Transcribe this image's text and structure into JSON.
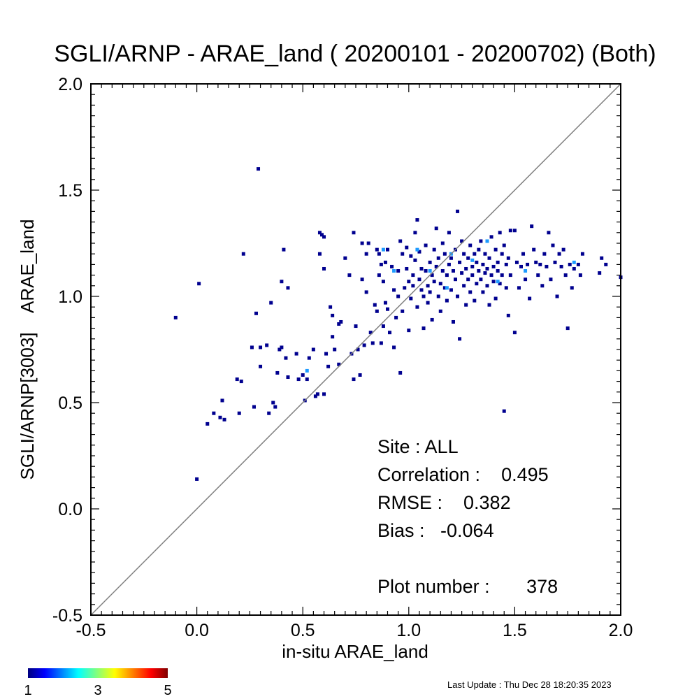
{
  "chart_data": {
    "type": "scatter",
    "title": "SGLI/ARNP - ARAE_land ( 20200101 - 20200702) (Both)",
    "xlabel": "in-situ ARAE_land",
    "ylabel": "SGLI/ARNP[3003]    ARAE_land",
    "xlim": [
      -0.5,
      2.0
    ],
    "ylim": [
      -0.5,
      2.0
    ],
    "x_ticks": [
      "-0.5",
      "0.0",
      "0.5",
      "1.0",
      "1.5",
      "2.0"
    ],
    "y_ticks": [
      "-0.5",
      "0.0",
      "0.5",
      "1.0",
      "1.5",
      "2.0"
    ],
    "one_to_one_line": true,
    "grid": false,
    "colorbar": {
      "min": 1,
      "max": 5,
      "labels": [
        "1",
        "3",
        "5"
      ],
      "colormap": "jet"
    },
    "stats": {
      "site": "Site : ALL",
      "correlation": "Correlation :    0.495",
      "rmse": "RMSE :    0.382",
      "bias": "Bias :   -0.064",
      "plot_number": "Plot number :       378"
    },
    "points": [
      [
        -0.1,
        0.9
      ],
      [
        0.0,
        0.14
      ],
      [
        0.01,
        1.06
      ],
      [
        0.05,
        0.4
      ],
      [
        0.08,
        0.45
      ],
      [
        0.11,
        0.43
      ],
      [
        0.12,
        0.51
      ],
      [
        0.13,
        0.42
      ],
      [
        0.19,
        0.61
      ],
      [
        0.2,
        0.45
      ],
      [
        0.21,
        0.6
      ],
      [
        0.22,
        1.2
      ],
      [
        0.26,
        0.76
      ],
      [
        0.27,
        0.48
      ],
      [
        0.28,
        0.92
      ],
      [
        0.29,
        1.6
      ],
      [
        0.3,
        0.76
      ],
      [
        0.3,
        0.67
      ],
      [
        0.33,
        0.77
      ],
      [
        0.34,
        0.45
      ],
      [
        0.35,
        0.97
      ],
      [
        0.36,
        0.5
      ],
      [
        0.37,
        0.48
      ],
      [
        0.38,
        0.64
      ],
      [
        0.39,
        0.75
      ],
      [
        0.4,
        0.76
      ],
      [
        0.4,
        1.07
      ],
      [
        0.41,
        1.22
      ],
      [
        0.42,
        0.71
      ],
      [
        0.43,
        1.04
      ],
      [
        0.43,
        0.62
      ],
      [
        0.47,
        0.73
      ],
      [
        0.48,
        0.61
      ],
      [
        0.5,
        0.63
      ],
      [
        0.51,
        0.51
      ],
      [
        0.52,
        0.61
      ],
      [
        0.53,
        0.71
      ],
      [
        0.55,
        0.75
      ],
      [
        0.56,
        0.53
      ],
      [
        0.57,
        0.54
      ],
      [
        0.58,
        1.3
      ],
      [
        0.58,
        1.2
      ],
      [
        0.59,
        1.29
      ],
      [
        0.6,
        1.28
      ],
      [
        0.6,
        0.54
      ],
      [
        0.6,
        1.13
      ],
      [
        0.61,
        0.73
      ],
      [
        0.62,
        0.67
      ],
      [
        0.63,
        0.95
      ],
      [
        0.64,
        0.81
      ],
      [
        0.64,
        0.91
      ],
      [
        0.65,
        0.75
      ],
      [
        0.67,
        0.87
      ],
      [
        0.67,
        0.68
      ],
      [
        0.68,
        0.88
      ],
      [
        0.7,
        1.18
      ],
      [
        0.72,
        1.1
      ],
      [
        0.73,
        0.73
      ],
      [
        0.74,
        0.61
      ],
      [
        0.74,
        1.3
      ],
      [
        0.75,
        0.86
      ],
      [
        0.76,
        0.75
      ],
      [
        0.77,
        0.63
      ],
      [
        0.78,
        1.08
      ],
      [
        0.78,
        1.25
      ],
      [
        0.79,
        0.77
      ],
      [
        0.8,
        1.2
      ],
      [
        0.8,
        1.02
      ],
      [
        0.81,
        1.25
      ],
      [
        0.82,
        0.83
      ],
      [
        0.83,
        0.78
      ],
      [
        0.84,
        0.96
      ],
      [
        0.85,
        1.22
      ],
      [
        0.85,
        0.93
      ],
      [
        0.86,
        1.1
      ],
      [
        0.86,
        1.2
      ],
      [
        0.87,
        0.78
      ],
      [
        0.87,
        1.15
      ],
      [
        0.88,
        1.07
      ],
      [
        0.88,
        0.86
      ],
      [
        0.89,
        1.16
      ],
      [
        0.89,
        0.97
      ],
      [
        0.9,
        1.22
      ],
      [
        0.9,
        0.94
      ],
      [
        0.91,
        0.83
      ],
      [
        0.92,
        1.14
      ],
      [
        0.93,
        1.03
      ],
      [
        0.93,
        0.76
      ],
      [
        0.94,
        0.9
      ],
      [
        0.95,
        1.12
      ],
      [
        0.95,
        1.0
      ],
      [
        0.96,
        1.26
      ],
      [
        0.96,
        0.64
      ],
      [
        0.97,
        1.2
      ],
      [
        0.97,
        0.93
      ],
      [
        0.98,
        1.04
      ],
      [
        0.99,
        1.13
      ],
      [
        0.99,
        1.23
      ],
      [
        1.0,
        1.07
      ],
      [
        1.0,
        0.84
      ],
      [
        1.01,
        1.19
      ],
      [
        1.01,
        0.99
      ],
      [
        1.02,
        1.1
      ],
      [
        1.02,
        1.05
      ],
      [
        1.03,
        1.17
      ],
      [
        1.03,
        1.3
      ],
      [
        1.04,
        1.36
      ],
      [
        1.04,
        0.95
      ],
      [
        1.05,
        1.08
      ],
      [
        1.05,
        1.21
      ],
      [
        1.06,
        1.03
      ],
      [
        1.06,
        1.13
      ],
      [
        1.07,
        1.0
      ],
      [
        1.07,
        0.85
      ],
      [
        1.08,
        1.12
      ],
      [
        1.08,
        1.24
      ],
      [
        1.09,
        1.05
      ],
      [
        1.09,
        0.97
      ],
      [
        1.1,
        1.16
      ],
      [
        1.1,
        1.02
      ],
      [
        1.11,
        1.1
      ],
      [
        1.11,
        0.89
      ],
      [
        1.12,
        1.22
      ],
      [
        1.12,
        1.07
      ],
      [
        1.13,
        1.14
      ],
      [
        1.13,
        1.32
      ],
      [
        1.14,
        1.0
      ],
      [
        1.14,
        1.18
      ],
      [
        1.15,
        1.06
      ],
      [
        1.15,
        0.93
      ],
      [
        1.16,
        1.12
      ],
      [
        1.16,
        1.25
      ],
      [
        1.17,
        1.04
      ],
      [
        1.17,
        1.2
      ],
      [
        1.18,
        1.1
      ],
      [
        1.18,
        0.98
      ],
      [
        1.19,
        1.15
      ],
      [
        1.19,
        1.3
      ],
      [
        1.2,
        1.03
      ],
      [
        1.2,
        1.18
      ],
      [
        1.21,
        1.12
      ],
      [
        1.21,
        0.88
      ],
      [
        1.22,
        1.22
      ],
      [
        1.22,
        1.08
      ],
      [
        1.23,
        1.4
      ],
      [
        1.23,
        1.0
      ],
      [
        1.24,
        1.16
      ],
      [
        1.24,
        0.8
      ],
      [
        1.25,
        1.11
      ],
      [
        1.25,
        1.26
      ],
      [
        1.26,
        1.05
      ],
      [
        1.26,
        1.2
      ],
      [
        1.27,
        1.13
      ],
      [
        1.27,
        0.96
      ],
      [
        1.28,
        1.18
      ],
      [
        1.28,
        1.08
      ],
      [
        1.29,
        1.24
      ],
      [
        1.29,
        1.02
      ],
      [
        1.3,
        1.14
      ],
      [
        1.3,
        1.1
      ],
      [
        1.31,
        1.2
      ],
      [
        1.31,
        0.98
      ],
      [
        1.32,
        1.06
      ],
      [
        1.32,
        1.16
      ],
      [
        1.33,
        1.12
      ],
      [
        1.33,
        1.22
      ],
      [
        1.34,
        1.08
      ],
      [
        1.34,
        1.26
      ],
      [
        1.35,
        1.15
      ],
      [
        1.35,
        1.02
      ],
      [
        1.36,
        1.11
      ],
      [
        1.36,
        1.2
      ],
      [
        1.37,
        1.05
      ],
      [
        1.37,
        1.13
      ],
      [
        1.38,
        1.18
      ],
      [
        1.38,
        0.96
      ],
      [
        1.39,
        1.1
      ],
      [
        1.39,
        1.28
      ],
      [
        1.4,
        1.14
      ],
      [
        1.4,
        1.07
      ],
      [
        1.41,
        1.22
      ],
      [
        1.41,
        0.99
      ],
      [
        1.42,
        1.12
      ],
      [
        1.42,
        1.16
      ],
      [
        1.43,
        1.06
      ],
      [
        1.43,
        1.3
      ],
      [
        1.44,
        1.2
      ],
      [
        1.44,
        1.1
      ],
      [
        1.45,
        0.46
      ],
      [
        1.45,
        1.24
      ],
      [
        1.46,
        1.15
      ],
      [
        1.46,
        1.04
      ],
      [
        1.47,
        1.18
      ],
      [
        1.47,
        0.91
      ],
      [
        1.48,
        1.31
      ],
      [
        1.48,
        1.1
      ],
      [
        1.5,
        1.31
      ],
      [
        1.5,
        0.83
      ],
      [
        1.51,
        1.16
      ],
      [
        1.52,
        1.04
      ],
      [
        1.53,
        1.14
      ],
      [
        1.54,
        1.2
      ],
      [
        1.55,
        1.08
      ],
      [
        1.56,
        1.15
      ],
      [
        1.57,
        0.99
      ],
      [
        1.58,
        1.33
      ],
      [
        1.59,
        1.22
      ],
      [
        1.6,
        1.16
      ],
      [
        1.61,
        1.1
      ],
      [
        1.62,
        1.15
      ],
      [
        1.63,
        1.05
      ],
      [
        1.64,
        1.2
      ],
      [
        1.65,
        1.14
      ],
      [
        1.66,
        1.3
      ],
      [
        1.67,
        1.08
      ],
      [
        1.68,
        1.24
      ],
      [
        1.69,
        1.16
      ],
      [
        1.7,
        1.0
      ],
      [
        1.71,
        1.2
      ],
      [
        1.72,
        1.14
      ],
      [
        1.73,
        1.22
      ],
      [
        1.74,
        1.1
      ],
      [
        1.75,
        0.85
      ],
      [
        1.76,
        1.15
      ],
      [
        1.77,
        1.04
      ],
      [
        1.78,
        1.13
      ],
      [
        1.8,
        1.15
      ],
      [
        1.81,
        1.1
      ],
      [
        1.82,
        1.2
      ],
      [
        1.9,
        1.11
      ],
      [
        1.91,
        1.18
      ],
      [
        1.93,
        1.15
      ],
      [
        2.0,
        1.09
      ]
    ],
    "highlight_points": [
      [
        0.88,
        1.22
      ],
      [
        0.93,
        1.12
      ],
      [
        1.04,
        1.22
      ],
      [
        1.1,
        1.12
      ],
      [
        1.2,
        1.2
      ],
      [
        1.3,
        1.17
      ],
      [
        1.37,
        1.26
      ],
      [
        1.42,
        1.07
      ],
      [
        1.18,
        1.04
      ],
      [
        1.55,
        1.12
      ],
      [
        0.52,
        0.65
      ],
      [
        1.78,
        1.16
      ]
    ]
  },
  "footer": {
    "last_update": "Last Update : Thu Dec 28 18:20:35 2023"
  }
}
